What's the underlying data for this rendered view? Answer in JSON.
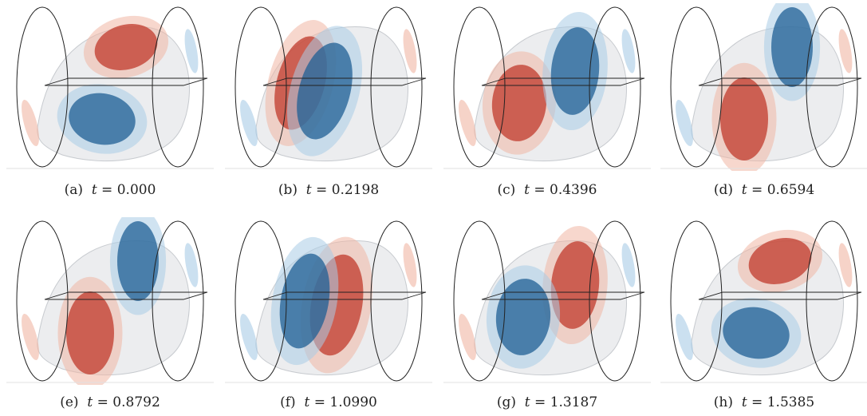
{
  "figure": {
    "panels": [
      {
        "label": "(a)",
        "var": "t",
        "value": "0.000",
        "arrangement": "red-top-blue-bottom"
      },
      {
        "label": "(b)",
        "var": "t",
        "value": "0.2198",
        "arrangement": "red-left-blue-center"
      },
      {
        "label": "(c)",
        "var": "t",
        "value": "0.4396",
        "arrangement": "red-left-blue-right"
      },
      {
        "label": "(d)",
        "var": "t",
        "value": "0.6594",
        "arrangement": "blue-top-red-bottom"
      },
      {
        "label": "(e)",
        "var": "t",
        "value": "0.8792",
        "arrangement": "blue-top-red-bottom"
      },
      {
        "label": "(f)",
        "var": "t",
        "value": "1.0990",
        "arrangement": "blue-left-red-center"
      },
      {
        "label": "(g)",
        "var": "t",
        "value": "1.3187",
        "arrangement": "blue-left-red-right"
      },
      {
        "label": "(h)",
        "var": "t",
        "value": "1.5385",
        "arrangement": "red-top-blue-bottom"
      }
    ],
    "colors": {
      "positive": "#c0392b",
      "positive_light": "#f0b6a4",
      "negative": "#1f5f94",
      "negative_light": "#a9cce6",
      "shell": "#c9ccd2",
      "outline": "#222222"
    }
  }
}
